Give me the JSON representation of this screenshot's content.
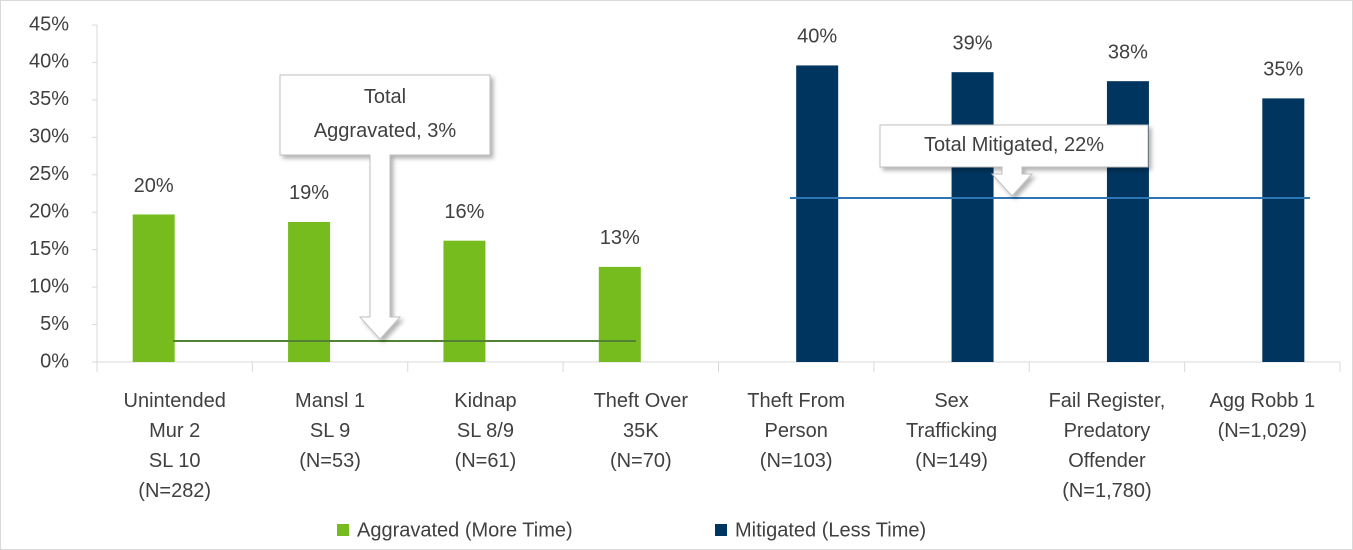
{
  "chart_data": {
    "type": "bar",
    "categories": [
      [
        "Unintended",
        "Mur 2",
        "SL 10",
        "(N=282)"
      ],
      [
        "Mansl 1",
        "SL 9",
        "(N=53)"
      ],
      [
        "Kidnap",
        "SL 8/9",
        "(N=61)"
      ],
      [
        "Theft Over",
        "35K",
        "(N=70)"
      ],
      [
        "Theft From",
        "Person",
        "(N=103)"
      ],
      [
        "Sex",
        "Trafficking",
        "(N=149)"
      ],
      [
        "Fail Register,",
        "Predatory",
        "Offender",
        "(N=1,780)"
      ],
      [
        "Agg Robb 1",
        "(N=1,029)"
      ]
    ],
    "series": [
      {
        "name": "Aggravated (More Time)",
        "color": "#77bc1f",
        "values": [
          19.7,
          18.7,
          16.2,
          12.7,
          null,
          null,
          null,
          null
        ],
        "value_labels": [
          "20%",
          "19%",
          "16%",
          "13%",
          null,
          null,
          null,
          null
        ]
      },
      {
        "name": "Mitigated (Less Time)",
        "color": "#00355f",
        "values": [
          null,
          null,
          null,
          null,
          39.6,
          38.7,
          37.5,
          35.2
        ],
        "value_labels": [
          null,
          null,
          null,
          null,
          "40%",
          "39%",
          "38%",
          "35%"
        ]
      }
    ],
    "reference_lines": [
      {
        "text": [
          "Total",
          "Aggravated, 3%"
        ],
        "value": 2.8,
        "color": "#548235"
      },
      {
        "text": [
          "Total Mitigated, 22%"
        ],
        "value": 21.9,
        "color": "#2e75b6"
      }
    ],
    "ylim": [
      0,
      45
    ],
    "yticks": [
      {
        "value": 0,
        "label": "0%"
      },
      {
        "value": 5,
        "label": "5%"
      },
      {
        "value": 10,
        "label": "10%"
      },
      {
        "value": 15,
        "label": "15%"
      },
      {
        "value": 20,
        "label": "20%"
      },
      {
        "value": 25,
        "label": "25%"
      },
      {
        "value": 30,
        "label": "30%"
      },
      {
        "value": 35,
        "label": "35%"
      },
      {
        "value": 40,
        "label": "40%"
      },
      {
        "value": 45,
        "label": "45%"
      }
    ],
    "legend": "bottom"
  }
}
